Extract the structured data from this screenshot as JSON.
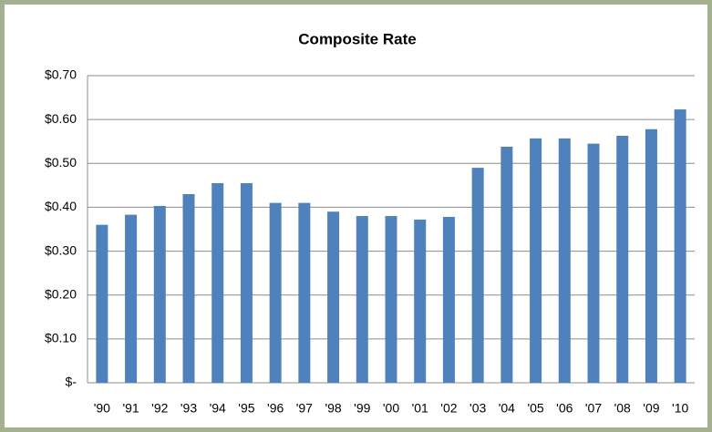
{
  "chart_data": {
    "type": "bar",
    "title": "Composite Rate",
    "categories": [
      "'90",
      "'91",
      "'92",
      "'93",
      "'94",
      "'95",
      "'96",
      "'97",
      "'98",
      "'99",
      "'00",
      "'01",
      "'02",
      "'03",
      "'04",
      "'05",
      "'06",
      "'07",
      "'08",
      "'09",
      "'10"
    ],
    "values": [
      0.36,
      0.383,
      0.403,
      0.43,
      0.455,
      0.455,
      0.41,
      0.41,
      0.39,
      0.38,
      0.38,
      0.372,
      0.378,
      0.49,
      0.538,
      0.557,
      0.557,
      0.545,
      0.563,
      0.578,
      0.623
    ],
    "color": "#4f81bd",
    "ylim": [
      0,
      0.7
    ],
    "yticks": [
      {
        "value": 0,
        "label": "$-"
      },
      {
        "value": 0.1,
        "label": "$0.10"
      },
      {
        "value": 0.2,
        "label": "$0.20"
      },
      {
        "value": 0.3,
        "label": "$0.30"
      },
      {
        "value": 0.4,
        "label": "$0.40"
      },
      {
        "value": 0.5,
        "label": "$0.50"
      },
      {
        "value": 0.6,
        "label": "$0.60"
      },
      {
        "value": 0.7,
        "label": "$0.70"
      }
    ],
    "grid": true
  }
}
